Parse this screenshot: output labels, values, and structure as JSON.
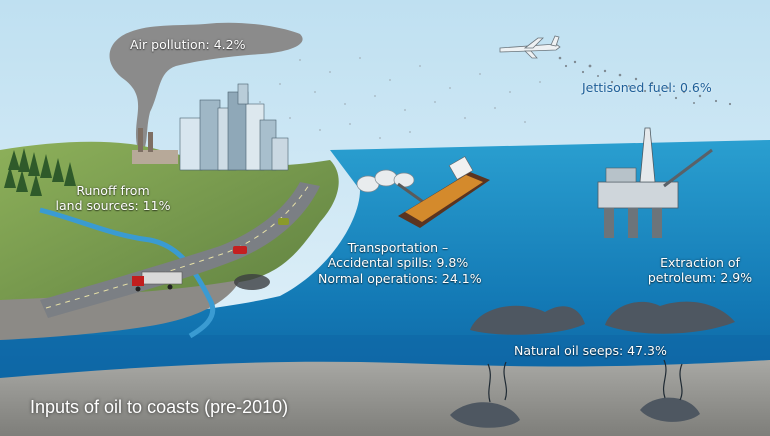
{
  "diagram": {
    "caption": "Inputs of oil to coasts (pre-2010)",
    "labels": {
      "air_pollution": "Air pollution: 4.2%",
      "jettisoned_fuel": "Jettisoned fuel: 0.6%",
      "runoff": [
        "Runoff from",
        "land sources: 11%"
      ],
      "transportation": [
        "Transportation –",
        "Accidental spills: 9.8%",
        "Normal operations: 24.1%"
      ],
      "extraction": [
        "Extraction of",
        "petroleum: 2.9%"
      ],
      "natural_seeps": "Natural oil seeps: 47.3%"
    },
    "colors": {
      "sky": "#d6ebf5",
      "sea_surface": "#1a8fc4",
      "sea_deep": "#0d5f9e",
      "land": "#7a9a4a",
      "seabed": "#9a9a96",
      "smoke": "#8d8d8d",
      "oil": "#3c3c3c",
      "tanker_deck": "#d48a2c",
      "ship_hull": "#5b3420"
    }
  }
}
